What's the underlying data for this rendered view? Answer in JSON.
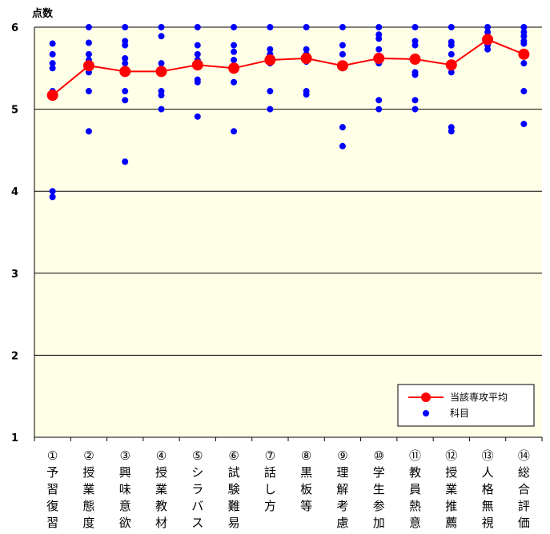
{
  "chart_data": {
    "type": "line",
    "ylabel": "点数",
    "ylim": [
      1,
      6
    ],
    "yticks": [
      "1",
      "2",
      "3",
      "4",
      "5",
      "6"
    ],
    "grid": true,
    "legend_position": "bottom-right",
    "categories": [
      [
        "①",
        "予",
        "習",
        "復",
        "習"
      ],
      [
        "②",
        "授",
        "業",
        "態",
        "度"
      ],
      [
        "③",
        "興",
        "味",
        "意",
        "欲"
      ],
      [
        "④",
        "授",
        "業",
        "教",
        "材"
      ],
      [
        "⑤",
        "シ",
        "ラ",
        "バ",
        "ス"
      ],
      [
        "⑥",
        "試",
        "験",
        "難",
        "易"
      ],
      [
        "⑦",
        "話",
        "し",
        "方",
        ""
      ],
      [
        "⑧",
        "黒",
        "板",
        "等",
        ""
      ],
      [
        "⑨",
        "理",
        "解",
        "考",
        "慮"
      ],
      [
        "⑩",
        "学",
        "生",
        "参",
        "加"
      ],
      [
        "⑪",
        "教",
        "員",
        "熱",
        "意"
      ],
      [
        "⑫",
        "授",
        "業",
        "推",
        "薦"
      ],
      [
        "⑬",
        "人",
        "格",
        "無",
        "視"
      ],
      [
        "⑭",
        "総",
        "合",
        "評",
        "価"
      ]
    ],
    "series": [
      {
        "name": "当該専攻平均",
        "type": "line",
        "color": "#ff0000",
        "values": [
          5.17,
          5.53,
          5.46,
          5.46,
          5.54,
          5.5,
          5.6,
          5.62,
          5.53,
          5.62,
          5.61,
          5.54,
          5.85,
          5.67
        ]
      },
      {
        "name": "科目",
        "type": "scatter",
        "color": "#0000ff",
        "points": [
          [
            5.8,
            5.67,
            5.56,
            5.5,
            5.22,
            4.0,
            3.93
          ],
          [
            6.0,
            5.81,
            5.67,
            5.6,
            5.45,
            5.22,
            4.73
          ],
          [
            6.0,
            5.83,
            5.78,
            5.62,
            5.56,
            5.22,
            5.11,
            4.36
          ],
          [
            6.0,
            5.89,
            5.56,
            5.45,
            5.22,
            5.17,
            5.0
          ],
          [
            6.0,
            5.78,
            5.67,
            5.6,
            5.36,
            5.33,
            4.91
          ],
          [
            6.0,
            5.78,
            5.7,
            5.6,
            5.5,
            5.33,
            4.73
          ],
          [
            6.0,
            5.73,
            5.67,
            5.6,
            5.56,
            5.22,
            5.0
          ],
          [
            6.0,
            5.73,
            5.67,
            5.58,
            5.22,
            5.18
          ],
          [
            6.0,
            5.78,
            5.67,
            5.5,
            4.78,
            4.55
          ],
          [
            6.0,
            5.91,
            5.86,
            5.73,
            5.56,
            5.11,
            5.0
          ],
          [
            6.0,
            5.83,
            5.78,
            5.62,
            5.45,
            5.42,
            5.11,
            5.0
          ],
          [
            6.0,
            5.82,
            5.78,
            5.67,
            5.45,
            4.78,
            4.73
          ],
          [
            6.0,
            5.94,
            5.89,
            5.78,
            5.73
          ],
          [
            6.0,
            5.94,
            5.89,
            5.83,
            5.8,
            5.56,
            5.22,
            4.82
          ]
        ]
      }
    ]
  }
}
